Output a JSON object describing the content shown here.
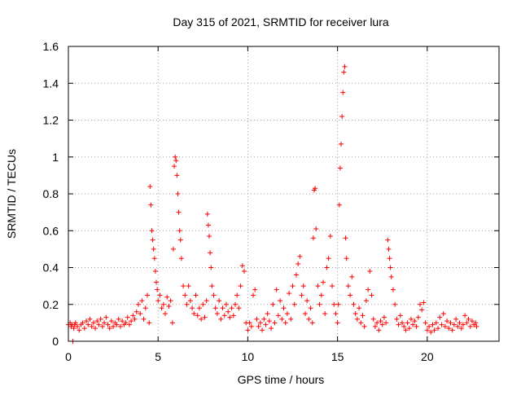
{
  "chart_data": {
    "type": "scatter",
    "title": "Day 315 of 2021, SRMTID for receiver lura",
    "xlabel": "GPS time / hours",
    "ylabel": "SRMTID / TECUs",
    "xlim": [
      0,
      24
    ],
    "ylim": [
      0,
      1.6
    ],
    "x_ticks": [
      0,
      5,
      10,
      15,
      20
    ],
    "x_tick_labels": [
      "0",
      "5",
      "10",
      "15",
      "20"
    ],
    "y_ticks": [
      0,
      0.2,
      0.4,
      0.6,
      0.8,
      1,
      1.2,
      1.4,
      1.6
    ],
    "y_tick_labels": [
      "0",
      "0.2",
      "0.4",
      "0.6",
      "0.8",
      "1",
      "1.2",
      "1.4",
      "1.6"
    ],
    "grid": true,
    "marker": "+",
    "series": [
      {
        "name": "SRMTID",
        "color": "#ff0000",
        "points": [
          [
            0.0,
            0.09
          ],
          [
            0.1,
            0.1
          ],
          [
            0.15,
            0.08
          ],
          [
            0.2,
            0.09
          ],
          [
            0.25,
            0.0
          ],
          [
            0.3,
            0.07
          ],
          [
            0.35,
            0.09
          ],
          [
            0.4,
            0.1
          ],
          [
            0.5,
            0.08
          ],
          [
            0.6,
            0.06
          ],
          [
            0.7,
            0.09
          ],
          [
            0.8,
            0.1
          ],
          [
            0.9,
            0.07
          ],
          [
            1.0,
            0.11
          ],
          [
            1.1,
            0.09
          ],
          [
            1.2,
            0.12
          ],
          [
            1.3,
            0.08
          ],
          [
            1.4,
            0.1
          ],
          [
            1.5,
            0.07
          ],
          [
            1.6,
            0.11
          ],
          [
            1.7,
            0.09
          ],
          [
            1.8,
            0.12
          ],
          [
            1.9,
            0.08
          ],
          [
            2.0,
            0.1
          ],
          [
            2.1,
            0.13
          ],
          [
            2.2,
            0.09
          ],
          [
            2.3,
            0.07
          ],
          [
            2.4,
            0.11
          ],
          [
            2.5,
            0.08
          ],
          [
            2.6,
            0.1
          ],
          [
            2.7,
            0.09
          ],
          [
            2.8,
            0.12
          ],
          [
            2.9,
            0.08
          ],
          [
            3.0,
            0.11
          ],
          [
            3.1,
            0.09
          ],
          [
            3.2,
            0.1
          ],
          [
            3.3,
            0.13
          ],
          [
            3.4,
            0.09
          ],
          [
            3.5,
            0.11
          ],
          [
            3.6,
            0.14
          ],
          [
            3.7,
            0.12
          ],
          [
            3.8,
            0.16
          ],
          [
            3.9,
            0.2
          ],
          [
            4.0,
            0.15
          ],
          [
            4.1,
            0.22
          ],
          [
            4.2,
            0.12
          ],
          [
            4.3,
            0.18
          ],
          [
            4.4,
            0.25
          ],
          [
            4.5,
            0.1
          ],
          [
            4.55,
            0.84
          ],
          [
            4.6,
            0.74
          ],
          [
            4.65,
            0.6
          ],
          [
            4.7,
            0.55
          ],
          [
            4.75,
            0.5
          ],
          [
            4.8,
            0.45
          ],
          [
            4.85,
            0.38
          ],
          [
            4.9,
            0.32
          ],
          [
            4.95,
            0.28
          ],
          [
            5.0,
            0.22
          ],
          [
            5.1,
            0.25
          ],
          [
            5.2,
            0.18
          ],
          [
            5.3,
            0.2
          ],
          [
            5.4,
            0.15
          ],
          [
            5.5,
            0.24
          ],
          [
            5.6,
            0.19
          ],
          [
            5.7,
            0.22
          ],
          [
            5.8,
            0.1
          ],
          [
            5.85,
            0.5
          ],
          [
            5.9,
            0.95
          ],
          [
            5.95,
            1.0
          ],
          [
            6.0,
            0.98
          ],
          [
            6.05,
            0.9
          ],
          [
            6.1,
            0.8
          ],
          [
            6.15,
            0.7
          ],
          [
            6.2,
            0.6
          ],
          [
            6.25,
            0.55
          ],
          [
            6.3,
            0.45
          ],
          [
            6.4,
            0.3
          ],
          [
            6.5,
            0.25
          ],
          [
            6.6,
            0.2
          ],
          [
            6.7,
            0.3
          ],
          [
            6.8,
            0.22
          ],
          [
            6.9,
            0.18
          ],
          [
            7.0,
            0.15
          ],
          [
            7.1,
            0.25
          ],
          [
            7.2,
            0.14
          ],
          [
            7.3,
            0.18
          ],
          [
            7.4,
            0.12
          ],
          [
            7.5,
            0.2
          ],
          [
            7.6,
            0.13
          ],
          [
            7.7,
            0.22
          ],
          [
            7.75,
            0.69
          ],
          [
            7.8,
            0.63
          ],
          [
            7.85,
            0.57
          ],
          [
            7.9,
            0.48
          ],
          [
            7.95,
            0.4
          ],
          [
            8.0,
            0.3
          ],
          [
            8.1,
            0.25
          ],
          [
            8.2,
            0.18
          ],
          [
            8.3,
            0.15
          ],
          [
            8.4,
            0.22
          ],
          [
            8.5,
            0.12
          ],
          [
            8.6,
            0.18
          ],
          [
            8.7,
            0.14
          ],
          [
            8.8,
            0.2
          ],
          [
            8.9,
            0.16
          ],
          [
            9.0,
            0.13
          ],
          [
            9.1,
            0.18
          ],
          [
            9.2,
            0.14
          ],
          [
            9.3,
            0.2
          ],
          [
            9.4,
            0.25
          ],
          [
            9.5,
            0.18
          ],
          [
            9.6,
            0.3
          ],
          [
            9.7,
            0.41
          ],
          [
            9.8,
            0.38
          ],
          [
            9.9,
            0.1
          ],
          [
            10.0,
            0.06
          ],
          [
            10.1,
            0.1
          ],
          [
            10.2,
            0.08
          ],
          [
            10.3,
            0.25
          ],
          [
            10.4,
            0.28
          ],
          [
            10.5,
            0.12
          ],
          [
            10.6,
            0.08
          ],
          [
            10.7,
            0.1
          ],
          [
            10.8,
            0.06
          ],
          [
            10.9,
            0.12
          ],
          [
            11.0,
            0.09
          ],
          [
            11.1,
            0.15
          ],
          [
            11.2,
            0.11
          ],
          [
            11.3,
            0.07
          ],
          [
            11.4,
            0.2
          ],
          [
            11.5,
            0.1
          ],
          [
            11.6,
            0.28
          ],
          [
            11.7,
            0.14
          ],
          [
            11.8,
            0.22
          ],
          [
            11.9,
            0.12
          ],
          [
            12.0,
            0.18
          ],
          [
            12.1,
            0.1
          ],
          [
            12.2,
            0.15
          ],
          [
            12.3,
            0.26
          ],
          [
            12.4,
            0.12
          ],
          [
            12.5,
            0.3
          ],
          [
            12.6,
            0.2
          ],
          [
            12.7,
            0.36
          ],
          [
            12.8,
            0.42
          ],
          [
            12.9,
            0.46
          ],
          [
            13.0,
            0.25
          ],
          [
            13.1,
            0.3
          ],
          [
            13.2,
            0.15
          ],
          [
            13.3,
            0.22
          ],
          [
            13.4,
            0.12
          ],
          [
            13.5,
            0.18
          ],
          [
            13.6,
            0.1
          ],
          [
            13.65,
            0.56
          ],
          [
            13.7,
            0.82
          ],
          [
            13.75,
            0.83
          ],
          [
            13.8,
            0.61
          ],
          [
            13.9,
            0.3
          ],
          [
            14.0,
            0.2
          ],
          [
            14.1,
            0.25
          ],
          [
            14.2,
            0.32
          ],
          [
            14.3,
            0.15
          ],
          [
            14.4,
            0.4
          ],
          [
            14.5,
            0.45
          ],
          [
            14.6,
            0.57
          ],
          [
            14.7,
            0.3
          ],
          [
            14.8,
            0.2
          ],
          [
            14.9,
            0.15
          ],
          [
            15.0,
            0.1
          ],
          [
            15.05,
            0.2
          ],
          [
            15.1,
            0.74
          ],
          [
            15.15,
            0.94
          ],
          [
            15.2,
            1.07
          ],
          [
            15.25,
            1.22
          ],
          [
            15.3,
            1.35
          ],
          [
            15.35,
            1.46
          ],
          [
            15.4,
            1.49
          ],
          [
            15.45,
            0.56
          ],
          [
            15.5,
            0.45
          ],
          [
            15.6,
            0.3
          ],
          [
            15.7,
            0.25
          ],
          [
            15.8,
            0.35
          ],
          [
            15.9,
            0.2
          ],
          [
            16.0,
            0.15
          ],
          [
            16.1,
            0.12
          ],
          [
            16.2,
            0.18
          ],
          [
            16.3,
            0.1
          ],
          [
            16.4,
            0.14
          ],
          [
            16.5,
            0.08
          ],
          [
            16.6,
            0.22
          ],
          [
            16.7,
            0.28
          ],
          [
            16.8,
            0.38
          ],
          [
            16.9,
            0.25
          ],
          [
            17.0,
            0.12
          ],
          [
            17.1,
            0.08
          ],
          [
            17.2,
            0.1
          ],
          [
            17.3,
            0.06
          ],
          [
            17.4,
            0.11
          ],
          [
            17.5,
            0.09
          ],
          [
            17.6,
            0.13
          ],
          [
            17.7,
            0.1
          ],
          [
            17.8,
            0.55
          ],
          [
            17.85,
            0.5
          ],
          [
            17.9,
            0.45
          ],
          [
            17.95,
            0.4
          ],
          [
            18.0,
            0.35
          ],
          [
            18.1,
            0.28
          ],
          [
            18.2,
            0.2
          ],
          [
            18.3,
            0.12
          ],
          [
            18.4,
            0.09
          ],
          [
            18.5,
            0.14
          ],
          [
            18.6,
            0.1
          ],
          [
            18.7,
            0.08
          ],
          [
            18.8,
            0.06
          ],
          [
            18.9,
            0.1
          ],
          [
            19.0,
            0.07
          ],
          [
            19.1,
            0.12
          ],
          [
            19.2,
            0.09
          ],
          [
            19.3,
            0.11
          ],
          [
            19.4,
            0.08
          ],
          [
            19.5,
            0.13
          ],
          [
            19.6,
            0.2
          ],
          [
            19.7,
            0.17
          ],
          [
            19.8,
            0.21
          ],
          [
            19.9,
            0.1
          ],
          [
            20.0,
            0.06
          ],
          [
            20.1,
            0.08
          ],
          [
            20.2,
            0.05
          ],
          [
            20.3,
            0.09
          ],
          [
            20.4,
            0.06
          ],
          [
            20.5,
            0.1
          ],
          [
            20.6,
            0.07
          ],
          [
            20.7,
            0.13
          ],
          [
            20.8,
            0.09
          ],
          [
            20.9,
            0.15
          ],
          [
            21.0,
            0.08
          ],
          [
            21.1,
            0.11
          ],
          [
            21.2,
            0.07
          ],
          [
            21.3,
            0.1
          ],
          [
            21.4,
            0.06
          ],
          [
            21.5,
            0.09
          ],
          [
            21.6,
            0.12
          ],
          [
            21.7,
            0.08
          ],
          [
            21.8,
            0.1
          ],
          [
            21.9,
            0.07
          ],
          [
            22.0,
            0.09
          ],
          [
            22.1,
            0.14
          ],
          [
            22.2,
            0.1
          ],
          [
            22.3,
            0.12
          ],
          [
            22.4,
            0.08
          ],
          [
            22.5,
            0.11
          ],
          [
            22.6,
            0.09
          ],
          [
            22.7,
            0.1
          ],
          [
            22.75,
            0.08
          ]
        ]
      }
    ]
  }
}
